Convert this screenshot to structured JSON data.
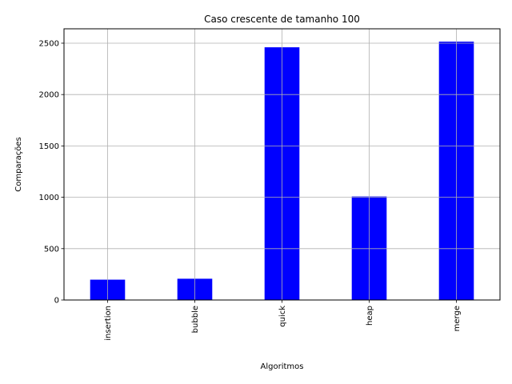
{
  "chart_data": {
    "type": "bar",
    "title": "Caso crescente de tamanho 100",
    "xlabel": "Algoritmos",
    "ylabel": "Comparações",
    "categories": [
      "insertion",
      "bubble",
      "quick",
      "heap",
      "merge"
    ],
    "values": [
      198,
      207,
      2460,
      1008,
      2515
    ],
    "ylim": [
      0,
      2640
    ],
    "yticks": [
      0,
      500,
      1000,
      1500,
      2000,
      2500
    ],
    "bar_color": "#0000ff",
    "grid": true,
    "xtick_rotation": "vertical"
  }
}
